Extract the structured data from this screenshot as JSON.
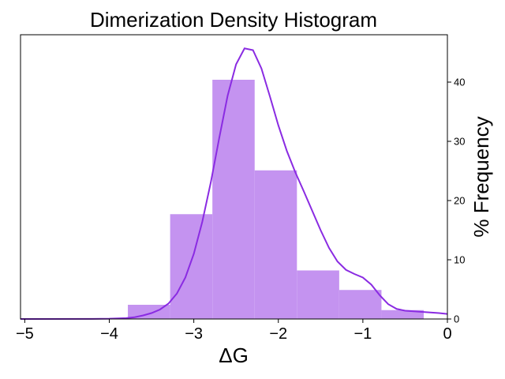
{
  "chart_data": {
    "type": "bar",
    "title": "Dimerization Density Histogram",
    "xlabel": "ΔG",
    "ylabel": "% Frequency",
    "xlim": [
      -5.05,
      0
    ],
    "ylim": [
      0,
      48
    ],
    "x_ticks": [
      -5,
      -4,
      -3,
      -2,
      -1,
      0
    ],
    "x_tick_labels": [
      "−5",
      "−4",
      "−3",
      "−2",
      "−1",
      "0"
    ],
    "y_ticks": [
      0,
      10,
      20,
      30,
      40
    ],
    "y_tick_labels": [
      "0",
      "10",
      "20",
      "30",
      "40"
    ],
    "y_axis_side": "right",
    "grid": false,
    "bins": [
      {
        "x0": -3.78,
        "x1": -3.28,
        "value": 2.4
      },
      {
        "x0": -3.28,
        "x1": -2.78,
        "value": 17.7
      },
      {
        "x0": -2.78,
        "x1": -2.28,
        "value": 40.4
      },
      {
        "x0": -2.28,
        "x1": -1.78,
        "value": 25.1
      },
      {
        "x0": -1.78,
        "x1": -1.28,
        "value": 8.2
      },
      {
        "x0": -1.28,
        "x1": -0.78,
        "value": 4.9
      },
      {
        "x0": -0.78,
        "x1": -0.28,
        "value": 1.5
      }
    ],
    "kde": {
      "x": [
        -5.05,
        -4.2,
        -4.0,
        -3.8,
        -3.7,
        -3.6,
        -3.5,
        -3.4,
        -3.3,
        -3.2,
        -3.1,
        -3.0,
        -2.9,
        -2.8,
        -2.7,
        -2.6,
        -2.5,
        -2.4,
        -2.3,
        -2.2,
        -2.1,
        -2.0,
        -1.9,
        -1.8,
        -1.7,
        -1.6,
        -1.5,
        -1.4,
        -1.3,
        -1.2,
        -1.1,
        -1.0,
        -0.9,
        -0.8,
        -0.7,
        -0.6,
        -0.5,
        -0.4,
        -0.3,
        -0.2,
        -0.1,
        0.0
      ],
      "y": [
        0,
        0.02,
        0.05,
        0.15,
        0.3,
        0.6,
        1.0,
        1.6,
        2.6,
        4.3,
        7.0,
        11.0,
        16.4,
        23.0,
        30.5,
        37.7,
        43.0,
        45.7,
        45.4,
        42.3,
        37.6,
        32.7,
        28.4,
        24.8,
        21.6,
        18.3,
        15.0,
        12.0,
        9.7,
        8.3,
        7.6,
        7.0,
        5.8,
        4.0,
        2.5,
        1.7,
        1.4,
        1.3,
        1.2,
        1.1,
        1.0,
        0.85
      ]
    },
    "bar_color": "#c493f0",
    "line_color": "#8a2be2"
  }
}
